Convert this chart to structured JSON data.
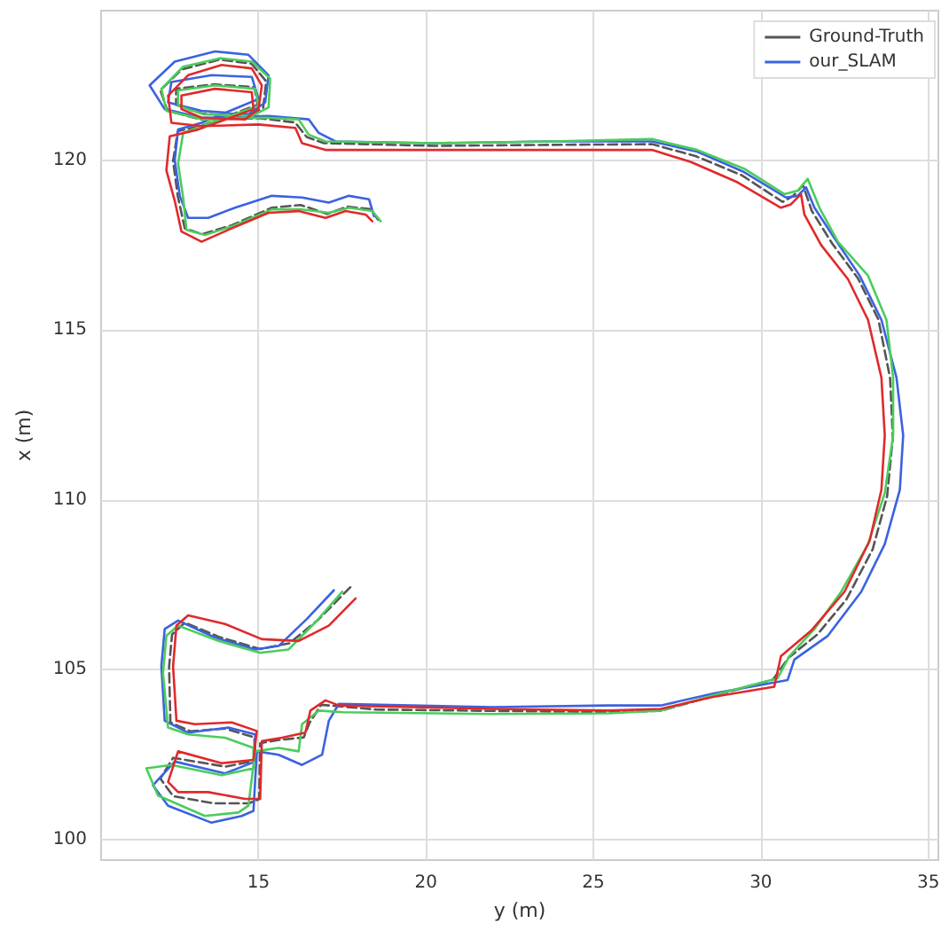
{
  "chart_data": {
    "type": "line",
    "xlabel": "y (m)",
    "ylabel": "x (m)",
    "xlim": [
      10.3,
      35.3
    ],
    "xticks": [
      15,
      20,
      25,
      30,
      35
    ],
    "ylim": [
      99.4,
      124.4
    ],
    "yticks": [
      100,
      105,
      110,
      115,
      120
    ],
    "grid": true,
    "legend": "top right",
    "marker": "none",
    "series": [
      {
        "name": "Ground-Truth",
        "color": "#555555",
        "line_style": "dashed",
        "x": [
          17.74,
          16.79,
          15.92,
          15.05,
          13.84,
          12.8,
          12.42,
          12.33,
          12.37,
          12.97,
          14.01,
          14.88,
          14.88,
          14.01,
          12.45,
          12.07,
          12.45,
          13.67,
          14.71,
          15.02,
          15.05,
          15.57,
          16.35,
          16.53,
          16.87,
          18.52,
          21.98,
          25.45,
          27.01,
          28.57,
          30.36,
          30.82,
          31.69,
          32.56,
          33.34,
          33.77,
          33.94,
          33.86,
          33.51,
          32.9,
          32.12,
          31.52,
          31.26,
          30.96,
          30.65,
          29.44,
          28.05,
          26.75,
          23.72,
          20.25,
          16.96,
          16.44,
          16.09,
          15.05,
          13.32,
          12.28,
          12.07,
          12.71,
          13.84,
          14.79,
          15.23,
          15.14,
          14.71,
          13.32,
          12.54,
          12.54,
          13.67,
          14.88,
          14.97,
          13.32,
          12.59,
          12.45,
          12.59,
          12.8,
          13.32,
          14.19,
          15.4,
          16.26,
          17.05,
          17.65,
          18.34,
          18.57
        ],
        "values": [
          107.43,
          106.48,
          105.78,
          105.61,
          105.96,
          106.39,
          106.04,
          105.09,
          103.45,
          103.19,
          103.27,
          103.01,
          102.32,
          102.15,
          102.41,
          101.8,
          101.28,
          101.07,
          101.07,
          101.19,
          102.84,
          102.93,
          103.01,
          103.45,
          103.97,
          103.83,
          103.79,
          103.76,
          103.79,
          104.23,
          104.71,
          105.35,
          106.04,
          107.08,
          108.55,
          110.11,
          111.84,
          113.58,
          115.31,
          116.52,
          117.56,
          118.51,
          119.26,
          118.94,
          118.77,
          119.55,
          120.12,
          120.47,
          120.45,
          120.42,
          120.5,
          120.68,
          121.11,
          121.23,
          121.19,
          121.45,
          122.06,
          122.67,
          122.96,
          122.84,
          122.32,
          121.54,
          121.28,
          121.37,
          121.63,
          122.1,
          122.23,
          122.15,
          121.63,
          121.02,
          120.85,
          119.98,
          118.94,
          117.99,
          117.82,
          118.08,
          118.6,
          118.68,
          118.42,
          118.63,
          118.56,
          118.25
        ]
      },
      {
        "name": "our_SLAM",
        "color": "#3b62e0",
        "line_style": "solid",
        "x": [
          17.25,
          16.45,
          15.6,
          14.9,
          13.7,
          12.6,
          12.2,
          12.1,
          12.2,
          12.9,
          14.1,
          14.9,
          14.9,
          14.0,
          12.5,
          11.85,
          12.3,
          13.6,
          14.5,
          14.85,
          14.95,
          15.6,
          16.3,
          16.9,
          17.1,
          17.4,
          21.98,
          25.45,
          27.01,
          28.57,
          30.8,
          31.0,
          32.0,
          33.0,
          33.7,
          34.15,
          34.25,
          34.05,
          33.6,
          32.95,
          32.2,
          31.6,
          31.35,
          31.1,
          30.75,
          29.5,
          28.1,
          26.75,
          23.72,
          20.25,
          17.3,
          16.8,
          16.5,
          15.3,
          13.3,
          12.2,
          11.75,
          12.5,
          13.7,
          14.7,
          15.3,
          15.2,
          14.7,
          13.3,
          12.3,
          12.4,
          13.6,
          14.8,
          15.0,
          13.3,
          12.6,
          12.5,
          12.65,
          12.9,
          13.5,
          14.3,
          15.4,
          16.3,
          17.1,
          17.7,
          18.3,
          18.45
        ],
        "values": [
          107.34,
          106.5,
          105.7,
          105.6,
          105.95,
          106.45,
          106.2,
          105.1,
          103.5,
          103.15,
          103.3,
          103.1,
          102.3,
          101.95,
          102.3,
          101.6,
          101.0,
          100.5,
          100.7,
          100.85,
          102.6,
          102.5,
          102.2,
          102.5,
          103.5,
          104.0,
          103.9,
          103.95,
          103.95,
          104.3,
          104.7,
          105.3,
          106.0,
          107.3,
          108.7,
          110.3,
          111.9,
          113.6,
          115.3,
          116.6,
          117.7,
          118.6,
          119.2,
          118.95,
          118.9,
          119.65,
          120.25,
          120.55,
          120.55,
          120.5,
          120.55,
          120.8,
          121.2,
          121.3,
          121.25,
          121.5,
          122.2,
          122.9,
          123.2,
          123.1,
          122.5,
          121.7,
          121.35,
          121.45,
          121.7,
          122.3,
          122.5,
          122.45,
          121.8,
          121.1,
          120.9,
          120.0,
          118.95,
          118.3,
          118.3,
          118.6,
          118.95,
          118.9,
          118.75,
          118.95,
          118.85,
          118.35
        ]
      },
      {
        "color": "#4ccc5c",
        "line_style": "solid",
        "x": [
          17.5,
          16.7,
          15.9,
          15.05,
          13.8,
          12.6,
          12.25,
          12.15,
          12.3,
          12.9,
          14.0,
          14.85,
          14.85,
          13.9,
          12.4,
          11.65,
          12.0,
          13.4,
          14.4,
          14.7,
          14.9,
          15.6,
          16.2,
          16.3,
          16.8,
          17.5,
          21.98,
          25.45,
          27.01,
          28.57,
          30.5,
          30.85,
          31.6,
          32.4,
          33.2,
          33.7,
          33.95,
          33.95,
          33.75,
          33.2,
          32.3,
          31.75,
          31.4,
          31.1,
          30.7,
          29.5,
          28.1,
          26.75,
          23.72,
          20.25,
          17.0,
          16.5,
          16.2,
          15.2,
          13.35,
          12.25,
          12.1,
          12.75,
          13.85,
          14.8,
          15.35,
          15.3,
          14.8,
          13.35,
          12.6,
          12.6,
          13.7,
          14.9,
          15.0,
          13.3,
          12.75,
          12.6,
          12.75,
          12.85,
          13.4,
          14.2,
          15.4,
          16.3,
          17.1,
          17.7,
          18.4,
          18.65
        ],
        "values": [
          107.3,
          106.4,
          105.6,
          105.5,
          105.85,
          106.3,
          106.0,
          104.9,
          103.3,
          103.1,
          103.0,
          102.7,
          102.1,
          101.9,
          102.2,
          102.1,
          101.3,
          100.7,
          100.8,
          101.0,
          102.6,
          102.7,
          102.6,
          103.4,
          103.8,
          103.75,
          103.7,
          103.72,
          103.8,
          104.25,
          104.75,
          105.4,
          106.2,
          107.3,
          108.7,
          110.2,
          111.9,
          113.6,
          115.3,
          116.6,
          117.6,
          118.6,
          119.45,
          119.1,
          119.0,
          119.75,
          120.3,
          120.62,
          120.55,
          120.5,
          120.55,
          120.75,
          121.2,
          121.25,
          121.2,
          121.45,
          122.1,
          122.75,
          123.0,
          122.9,
          122.4,
          121.55,
          121.3,
          121.35,
          121.6,
          122.05,
          122.2,
          122.1,
          121.6,
          121.0,
          120.8,
          119.9,
          118.9,
          117.95,
          117.8,
          118.05,
          118.55,
          118.55,
          118.45,
          118.6,
          118.5,
          118.2
        ]
      },
      {
        "color": "#e0292c",
        "line_style": "solid",
        "x": [
          17.9,
          17.1,
          16.2,
          15.1,
          14.0,
          12.9,
          12.55,
          12.45,
          12.55,
          13.1,
          14.2,
          14.95,
          14.85,
          13.9,
          12.6,
          12.3,
          12.6,
          13.5,
          14.6,
          15.05,
          15.1,
          15.7,
          16.4,
          16.55,
          17.0,
          17.4,
          21.98,
          25.45,
          27.01,
          28.57,
          30.4,
          30.6,
          31.5,
          32.5,
          33.25,
          33.6,
          33.7,
          33.6,
          33.2,
          32.6,
          31.8,
          31.3,
          31.2,
          30.9,
          30.6,
          29.3,
          27.9,
          26.75,
          23.72,
          20.25,
          17.0,
          16.3,
          16.1,
          15.0,
          13.3,
          12.4,
          12.3,
          12.9,
          13.9,
          14.8,
          15.1,
          15.0,
          14.6,
          13.3,
          12.7,
          12.7,
          13.7,
          14.8,
          14.85,
          13.2,
          12.35,
          12.25,
          12.5,
          12.7,
          13.3,
          14.1,
          15.3,
          16.2,
          17.0,
          17.6,
          18.2,
          18.4
        ],
        "values": [
          107.1,
          106.3,
          105.85,
          105.9,
          106.35,
          106.6,
          106.3,
          105.1,
          103.5,
          103.4,
          103.45,
          103.2,
          102.35,
          102.25,
          102.6,
          101.7,
          101.4,
          101.4,
          101.2,
          101.2,
          102.9,
          103.0,
          103.15,
          103.8,
          104.1,
          103.95,
          103.85,
          103.8,
          103.85,
          104.2,
          104.5,
          105.4,
          106.15,
          107.3,
          108.8,
          110.3,
          111.9,
          113.6,
          115.3,
          116.5,
          117.5,
          118.4,
          119.0,
          118.7,
          118.6,
          119.35,
          119.95,
          120.3,
          120.3,
          120.3,
          120.3,
          120.5,
          120.95,
          121.05,
          121.0,
          121.1,
          121.9,
          122.5,
          122.8,
          122.7,
          122.2,
          121.5,
          121.2,
          121.25,
          121.5,
          121.9,
          122.1,
          122.0,
          121.5,
          120.9,
          120.7,
          119.7,
          118.8,
          117.9,
          117.6,
          117.95,
          118.45,
          118.5,
          118.3,
          118.5,
          118.4,
          118.2
        ]
      }
    ]
  }
}
